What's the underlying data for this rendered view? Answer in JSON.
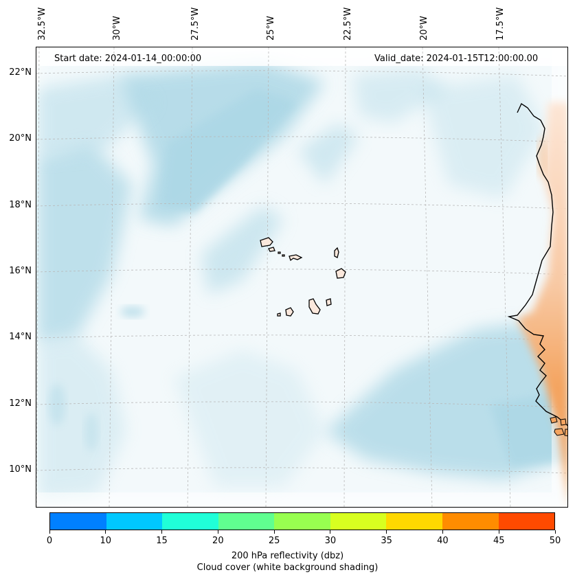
{
  "map": {
    "start_date": "Start date: 2024-01-14_00:00:00",
    "valid_date": "Valid_date: 2024-01-15T12:00:00.00",
    "lon_labels": [
      "32.5°W",
      "30°W",
      "27.5°W",
      "25°W",
      "22.5°W",
      "20°W",
      "17.5°W"
    ],
    "lat_labels": [
      "22°N",
      "20°N",
      "18°N",
      "16°N",
      "14°N",
      "12°N",
      "10°N"
    ],
    "gridlines": "dashed",
    "colors": {
      "cloud": "#add8e6",
      "land_reflectivity": "#f4a460",
      "coastline": "#000000"
    }
  },
  "colorbar": {
    "ticks": [
      "0",
      "10",
      "15",
      "20",
      "25",
      "30",
      "35",
      "40",
      "45",
      "50"
    ],
    "colors": [
      "#0080ff",
      "#00c8ff",
      "#20ffd8",
      "#60ff90",
      "#98ff50",
      "#d8ff20",
      "#ffd800",
      "#ff8c00",
      "#ff4a00"
    ],
    "label_line1": "200 hPa reflectivity (dbz)",
    "label_line2": "Cloud cover (white background shading)"
  }
}
